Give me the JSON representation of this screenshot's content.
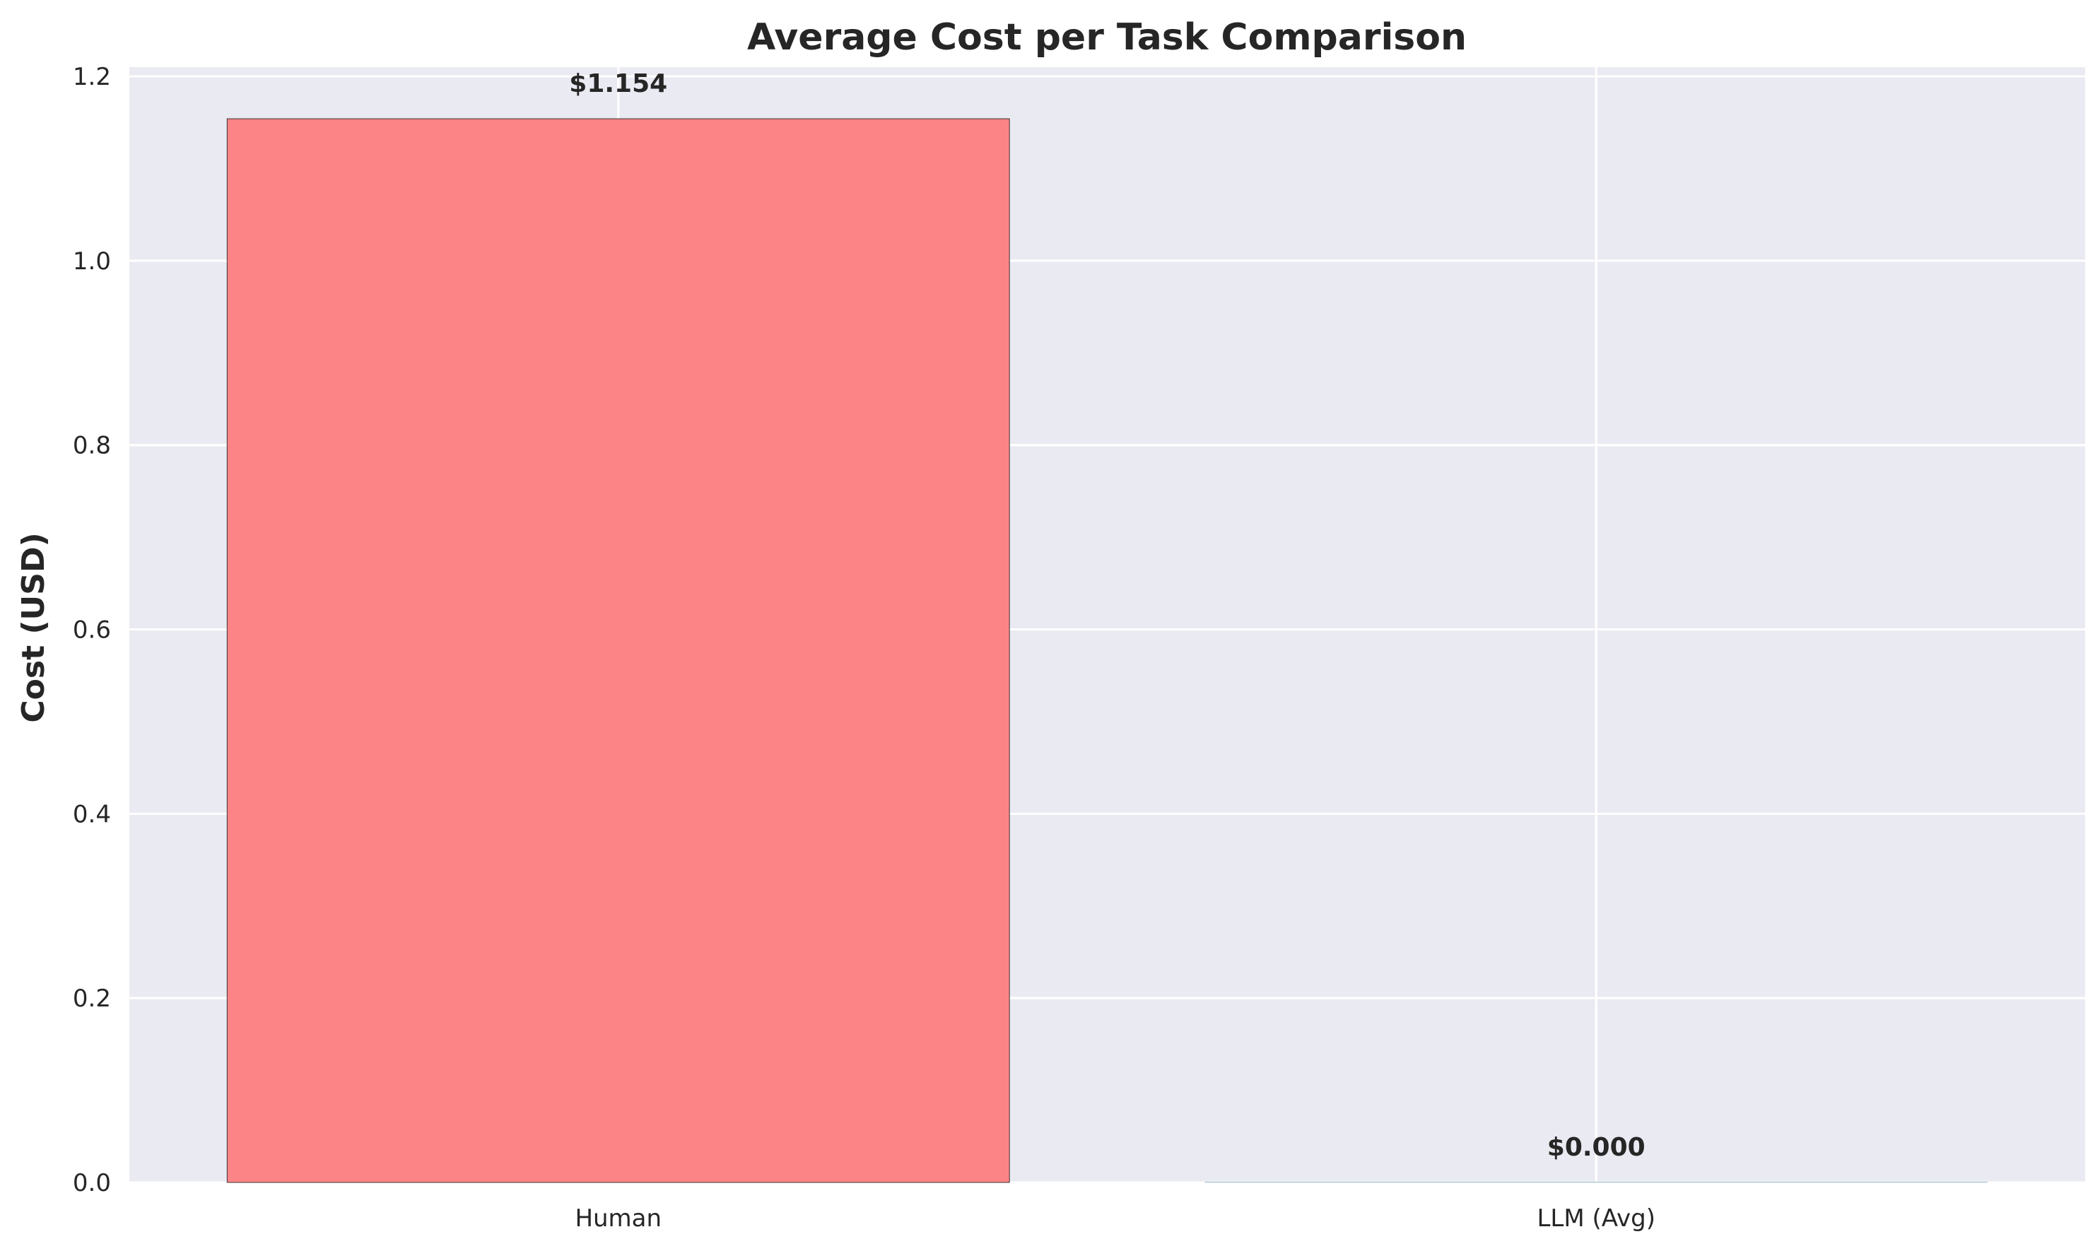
{
  "chart_data": {
    "type": "bar",
    "title": "Average Cost per Task Comparison",
    "xlabel": "",
    "ylabel": "Cost (USD)",
    "categories": [
      "Human",
      "LLM (Avg)"
    ],
    "values": [
      1.154,
      0.0
    ],
    "data_labels": [
      "$1.154",
      "$0.000"
    ],
    "ylim": [
      0,
      1.21
    ],
    "yticks": [
      0.0,
      0.2,
      0.4,
      0.6,
      0.8,
      1.0,
      1.2
    ],
    "ytick_labels": [
      "0.0",
      "0.2",
      "0.4",
      "0.6",
      "0.8",
      "1.0",
      "1.2"
    ],
    "grid": true,
    "colors": {
      "plot_background": "#eaeaf2",
      "gridline": "#ffffff",
      "bars": [
        "#fc8486",
        "#82c8f0"
      ],
      "bar_edge": "#262626",
      "text": "#262626"
    }
  }
}
